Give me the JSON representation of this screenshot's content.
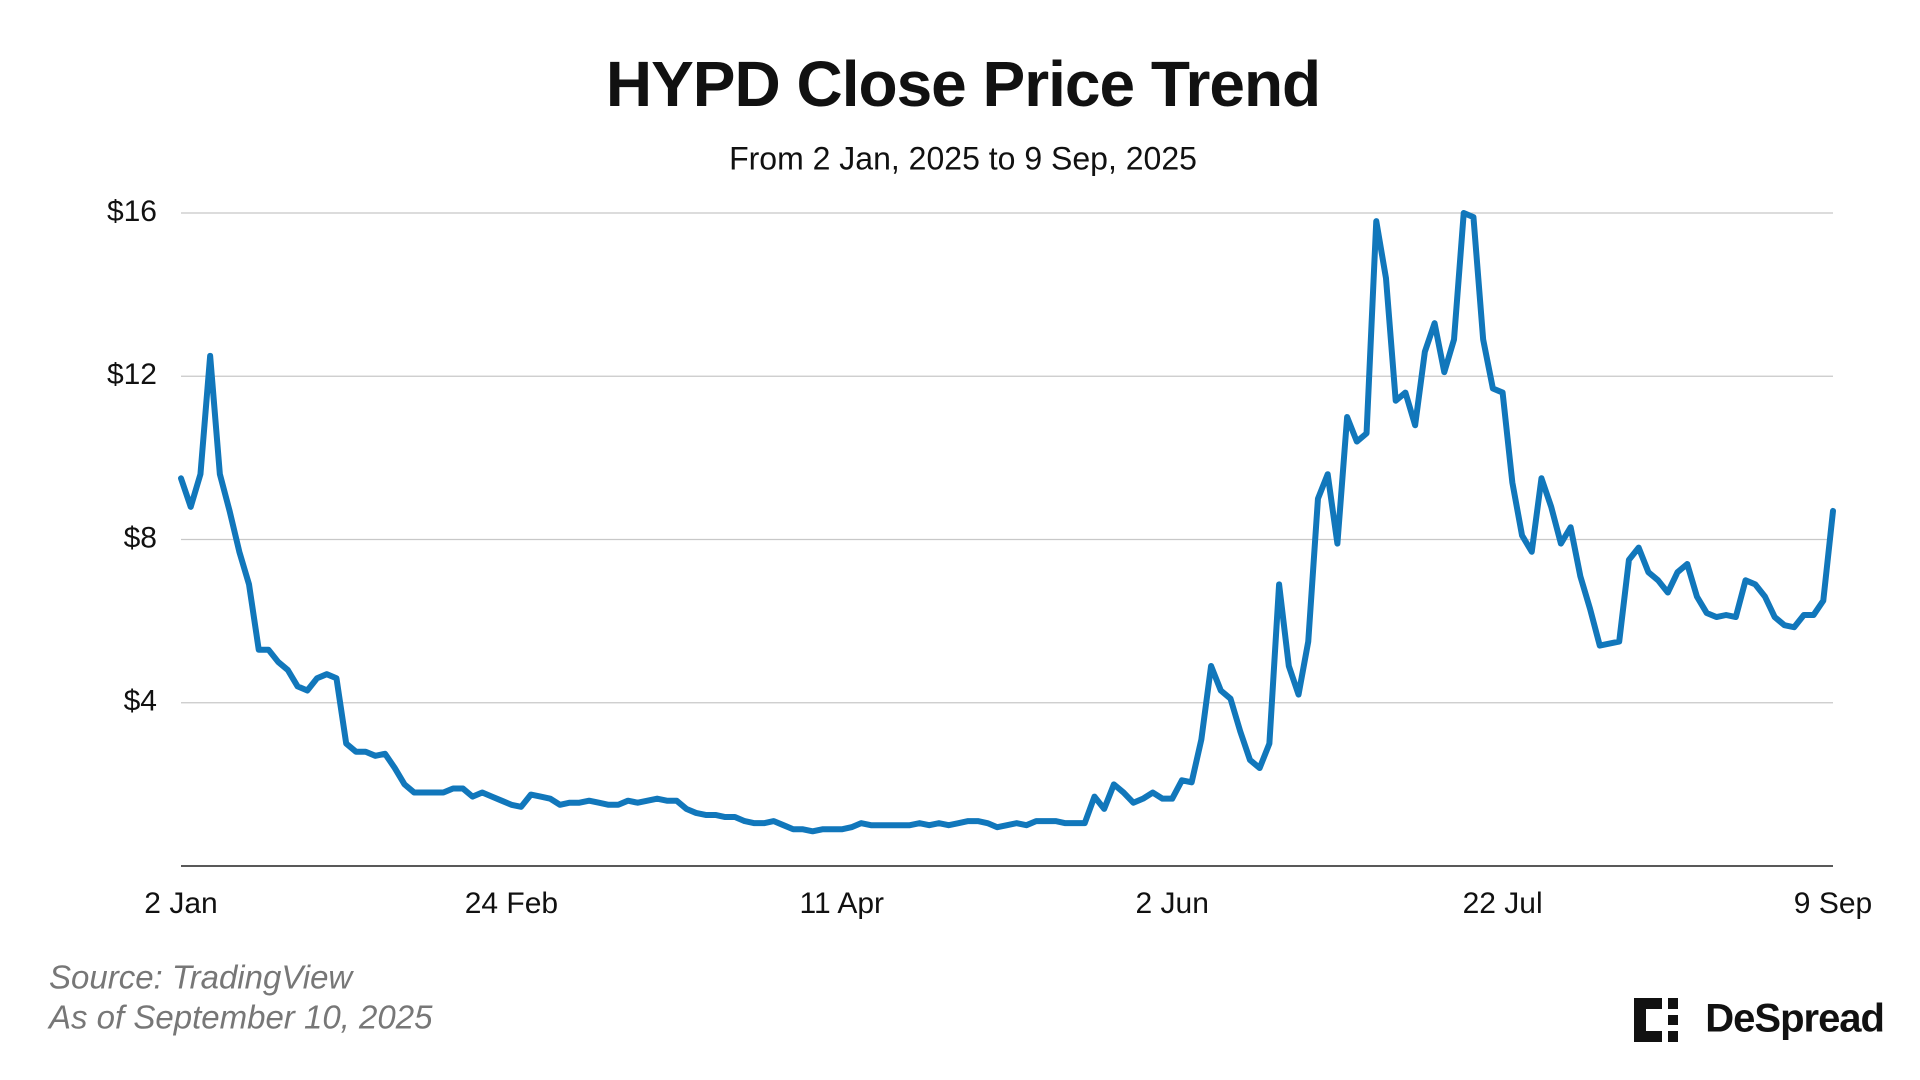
{
  "chart_data": {
    "type": "line",
    "title": "HYPD Close Price Trend",
    "subtitle": "From 2 Jan, 2025 to 9 Sep, 2025",
    "categories": [
      "2 Jan",
      null,
      null,
      null,
      null,
      null,
      null,
      null,
      null,
      null,
      null,
      null,
      null,
      null,
      null,
      null,
      null,
      null,
      null,
      null,
      null,
      null,
      null,
      null,
      null,
      null,
      null,
      null,
      null,
      null,
      null,
      null,
      null,
      null,
      "24 Feb",
      null,
      null,
      null,
      null,
      null,
      null,
      null,
      null,
      null,
      null,
      null,
      null,
      null,
      null,
      null,
      null,
      null,
      null,
      null,
      null,
      null,
      null,
      null,
      null,
      null,
      null,
      null,
      null,
      null,
      null,
      null,
      null,
      null,
      "11 Apr",
      null,
      null,
      null,
      null,
      null,
      null,
      null,
      null,
      null,
      null,
      null,
      null,
      null,
      null,
      null,
      null,
      null,
      null,
      null,
      null,
      null,
      null,
      null,
      null,
      null,
      null,
      null,
      null,
      null,
      null,
      null,
      null,
      null,
      "2 Jun",
      null,
      null,
      null,
      null,
      null,
      null,
      null,
      null,
      null,
      null,
      null,
      null,
      null,
      null,
      null,
      null,
      null,
      null,
      null,
      null,
      null,
      null,
      null,
      null,
      null,
      null,
      null,
      null,
      null,
      null,
      null,
      null,
      null,
      "22 Jul",
      null,
      null,
      null,
      null,
      null,
      null,
      null,
      null,
      null,
      null,
      null,
      null,
      null,
      null,
      null,
      null,
      null,
      null,
      null,
      null,
      null,
      null,
      null,
      null,
      null,
      null,
      null,
      null,
      null,
      null,
      null,
      null,
      null,
      "9 Sep"
    ],
    "values": [
      9.5,
      8.8,
      9.6,
      12.5,
      9.6,
      8.7,
      7.7,
      6.9,
      5.3,
      5.3,
      5.0,
      4.8,
      4.4,
      4.3,
      4.6,
      4.7,
      4.6,
      3.0,
      2.8,
      2.8,
      2.7,
      2.75,
      2.4,
      2.0,
      1.8,
      1.8,
      1.8,
      1.8,
      1.9,
      1.9,
      1.7,
      1.8,
      1.7,
      1.6,
      1.5,
      1.45,
      1.75,
      1.7,
      1.65,
      1.5,
      1.55,
      1.55,
      1.6,
      1.55,
      1.5,
      1.5,
      1.6,
      1.55,
      1.6,
      1.65,
      1.6,
      1.6,
      1.4,
      1.3,
      1.25,
      1.25,
      1.2,
      1.2,
      1.1,
      1.05,
      1.05,
      1.1,
      1.0,
      0.9,
      0.9,
      0.85,
      0.9,
      0.9,
      0.9,
      0.95,
      1.05,
      1.0,
      1.0,
      1.0,
      1.0,
      1.0,
      1.05,
      1.0,
      1.05,
      1.0,
      1.05,
      1.1,
      1.1,
      1.05,
      0.95,
      1.0,
      1.05,
      1.0,
      1.1,
      1.1,
      1.1,
      1.05,
      1.05,
      1.05,
      1.7,
      1.4,
      2.0,
      1.8,
      1.55,
      1.65,
      1.8,
      1.65,
      1.65,
      2.1,
      2.05,
      3.1,
      4.9,
      4.3,
      4.1,
      3.3,
      2.6,
      2.4,
      3.0,
      6.9,
      4.9,
      4.2,
      5.5,
      9.0,
      9.6,
      7.9,
      11.0,
      10.4,
      10.6,
      15.8,
      14.4,
      11.4,
      11.6,
      10.8,
      12.6,
      13.3,
      12.1,
      12.9,
      16.0,
      15.9,
      12.9,
      11.7,
      11.6,
      9.4,
      8.1,
      7.7,
      9.5,
      8.8,
      7.9,
      8.3,
      7.1,
      6.3,
      5.4,
      5.45,
      5.5,
      7.5,
      7.8,
      7.2,
      7.0,
      6.7,
      7.2,
      7.4,
      6.6,
      6.2,
      6.1,
      6.15,
      6.1,
      7.0,
      6.9,
      6.6,
      6.1,
      5.9,
      5.85,
      6.15,
      6.15,
      6.5,
      8.7
    ],
    "color": "#1177bb",
    "ylim": [
      0,
      16
    ],
    "yticks": [
      {
        "value": 4,
        "label": "$4"
      },
      {
        "value": 8,
        "label": "$8"
      },
      {
        "value": 12,
        "label": "$12"
      },
      {
        "value": 16,
        "label": "$16"
      }
    ],
    "grid": true,
    "source": "Source: TradingView",
    "note": "As of September 10, 2025",
    "brand": "DeSpread"
  }
}
